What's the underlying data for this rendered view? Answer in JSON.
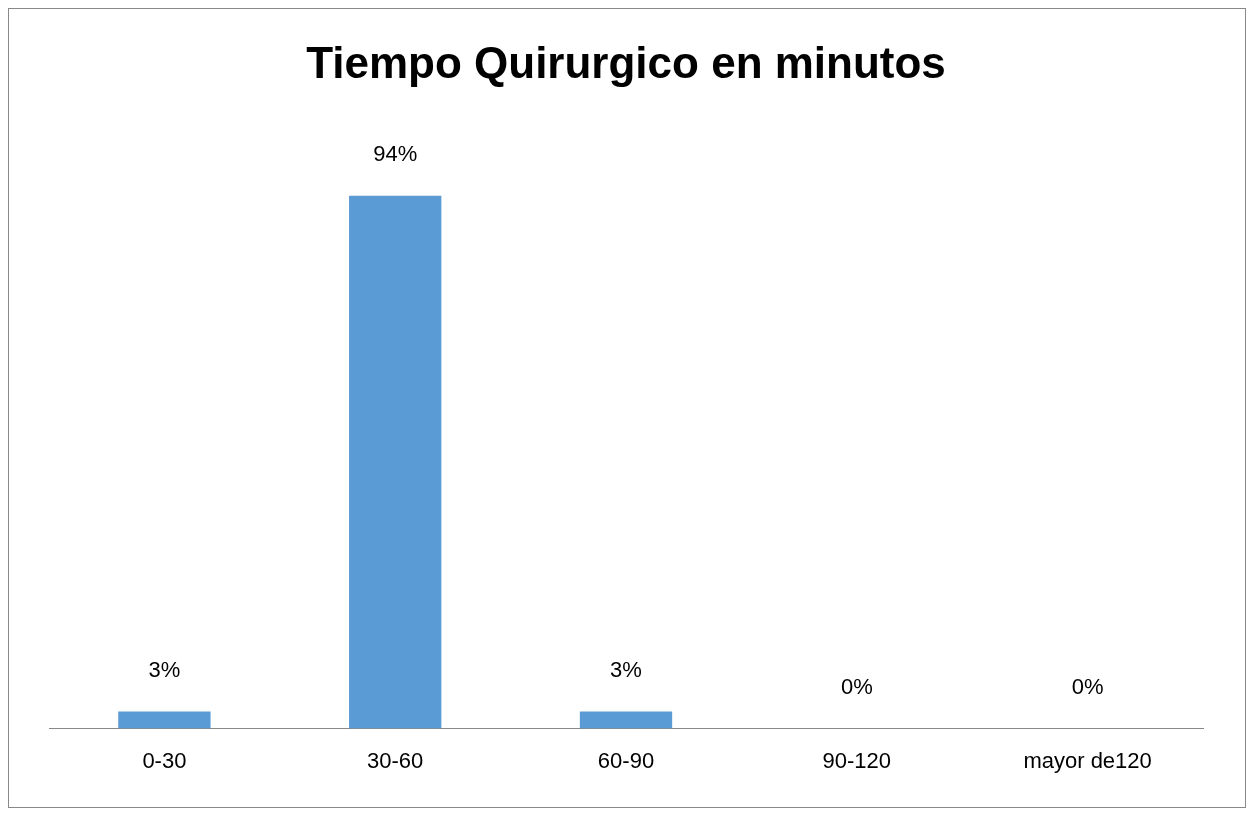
{
  "chart_data": {
    "type": "bar",
    "title": "Tiempo Quirurgico en minutos",
    "categories": [
      "0-30",
      "30-60",
      "60-90",
      "90-120",
      "mayor de120"
    ],
    "values": [
      3,
      94,
      3,
      0,
      0
    ],
    "value_labels": [
      "3%",
      "94%",
      "3%",
      "0%",
      "0%"
    ],
    "color": "#5b9bd5",
    "grid": false,
    "legend": false
  }
}
